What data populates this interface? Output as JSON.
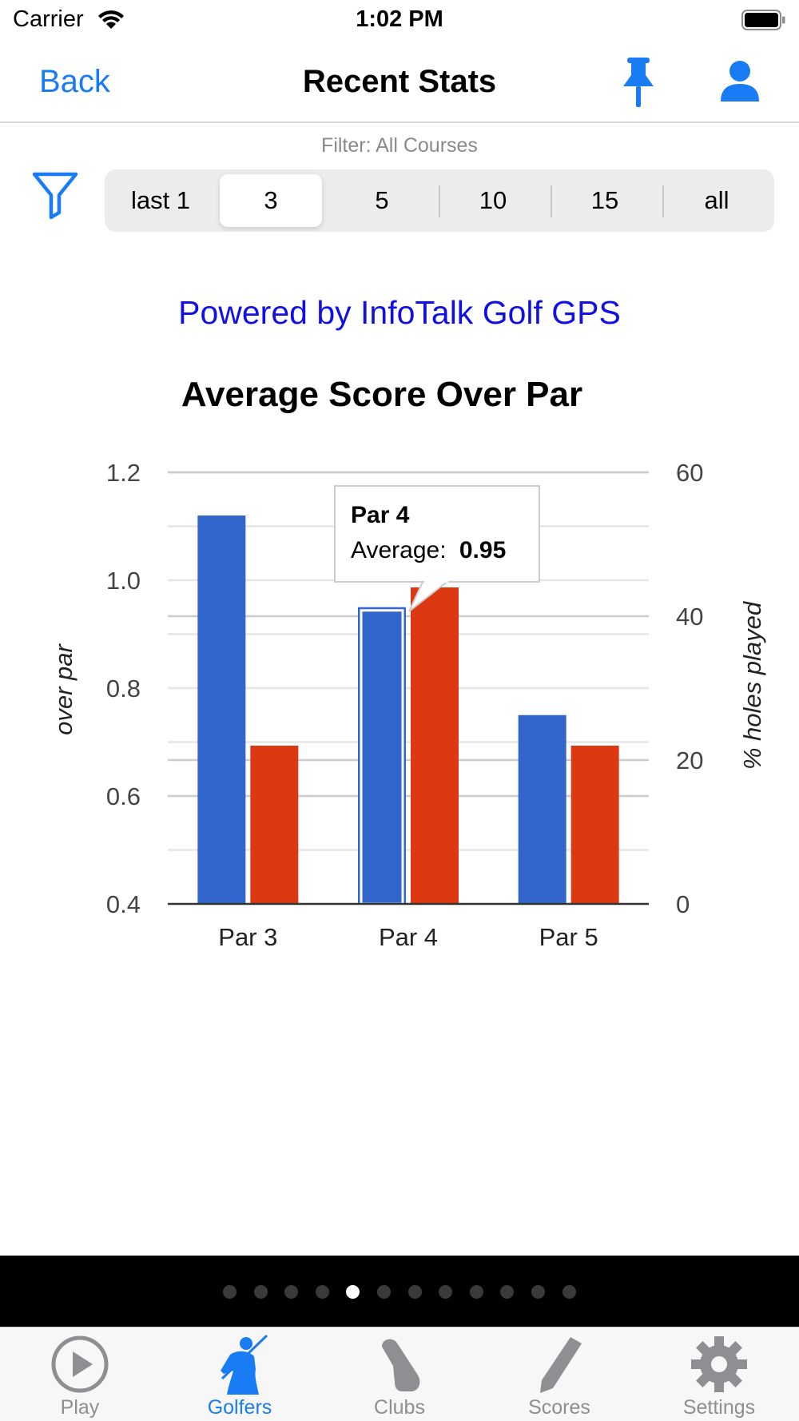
{
  "status_bar": {
    "carrier": "Carrier",
    "time": "1:02 PM"
  },
  "nav": {
    "back_label": "Back",
    "title": "Recent Stats"
  },
  "filter": {
    "label": "Filter: All Courses",
    "segments": [
      "last 1",
      "3",
      "5",
      "10",
      "15",
      "all"
    ],
    "selected": "3"
  },
  "powered_by": "Powered by InfoTalk Golf GPS",
  "colors": {
    "accent": "#1a7cf5",
    "series_blue": "#3366cc",
    "series_red": "#dc3912",
    "link": "#1010e6"
  },
  "chart_data": {
    "type": "bar",
    "title": "Average Score Over Par",
    "categories": [
      "Par 3",
      "Par 4",
      "Par 5"
    ],
    "ylabel": "over par",
    "y2label": "% holes played",
    "ylim": [
      0.4,
      1.2
    ],
    "y2lim": [
      0,
      60
    ],
    "yticks": [
      "1.2",
      "1.0",
      "0.8",
      "0.6",
      "0.4"
    ],
    "y2ticks": [
      "60",
      "40",
      "20",
      "0"
    ],
    "series": [
      {
        "axis": "left",
        "color": "#3366cc",
        "values": [
          1.12,
          0.95,
          0.75
        ]
      },
      {
        "axis": "right",
        "color": "#dc3912",
        "values": [
          22,
          44,
          22
        ]
      }
    ],
    "tooltip": {
      "category": "Par 4",
      "label": "Average:",
      "value": "0.95"
    }
  },
  "pager": {
    "count": 12,
    "active": 4
  },
  "tabs": [
    {
      "label": "Play",
      "icon": "play-circle-icon"
    },
    {
      "label": "Golfers",
      "icon": "golfer-icon",
      "active": true
    },
    {
      "label": "Clubs",
      "icon": "golf-club-icon"
    },
    {
      "label": "Scores",
      "icon": "pencil-icon"
    },
    {
      "label": "Settings",
      "icon": "gear-icon"
    }
  ]
}
